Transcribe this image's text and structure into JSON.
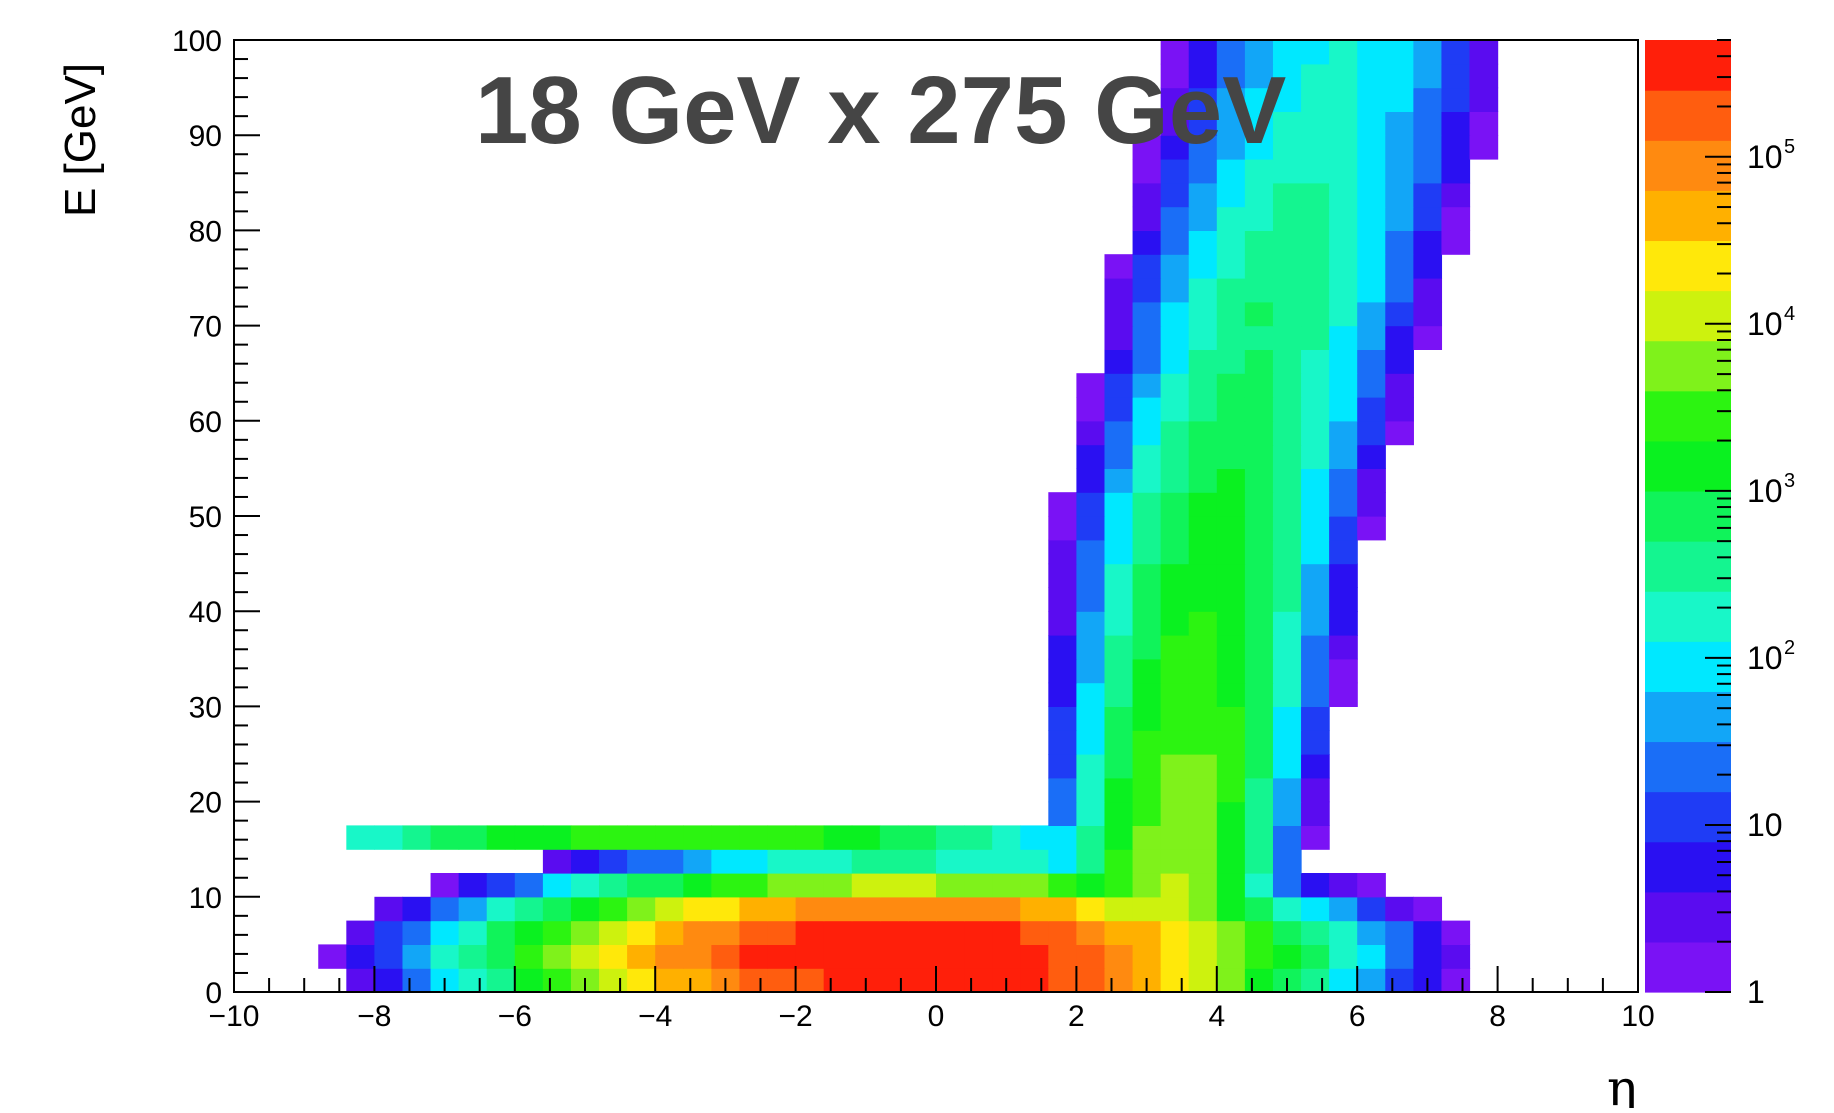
{
  "chart_data": {
    "type": "heatmap",
    "title": "18 GeV x 275 GeV",
    "xlabel": "η",
    "ylabel": "E [GeV]",
    "xlim": [
      -10,
      10
    ],
    "ylim": [
      0,
      100
    ],
    "x_ticks": [
      "−10",
      "−8",
      "−6",
      "−4",
      "−2",
      "0",
      "2",
      "4",
      "6",
      "8",
      "10"
    ],
    "y_ticks": [
      "0",
      "10",
      "20",
      "30",
      "40",
      "50",
      "60",
      "70",
      "80",
      "90",
      "100"
    ],
    "z_scale": "log",
    "zlim": [
      1,
      500000
    ],
    "colorbar_labels": [
      {
        "value": 1,
        "base": "1",
        "exp": ""
      },
      {
        "value": 10,
        "base": "10",
        "exp": ""
      },
      {
        "value": 100,
        "base": "10",
        "exp": "2"
      },
      {
        "value": 1000,
        "base": "10",
        "exp": "3"
      },
      {
        "value": 10000,
        "base": "10",
        "exp": "4"
      },
      {
        "value": 100000,
        "base": "10",
        "exp": "5"
      }
    ],
    "colorbar_colors": [
      "#7a12f5",
      "#5a0cf0",
      "#2a10f2",
      "#1f3cf5",
      "#1a6ef7",
      "#12a6f7",
      "#00e8ff",
      "#18f7c8",
      "#14f590",
      "#10f35a",
      "#0af120",
      "#2cf411",
      "#7ff21b",
      "#cdf20e",
      "#ffe80a",
      "#ffb000",
      "#ff8a10",
      "#ff5d0f",
      "#ff1f0a"
    ],
    "grid": false,
    "legend": "none"
  }
}
